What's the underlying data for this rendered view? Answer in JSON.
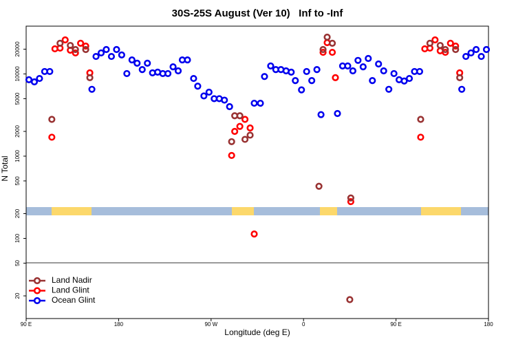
{
  "chart_data": {
    "type": "scatter",
    "title": "30S-25S August (Ver 10)   Inf to -Inf",
    "xlabel": "Longitude (deg E)",
    "ylabel": "N Total",
    "log_y": true,
    "legend": "bottom-left",
    "xlim": [
      90,
      540
    ],
    "ylim": [
      10.6,
      38100
    ],
    "xticks": [
      {
        "value": 90,
        "label": "90 E"
      },
      180,
      {
        "value": 270,
        "label": "90 W"
      },
      {
        "value": 360,
        "label": "0"
      },
      {
        "value": 450,
        "label": "90 E"
      },
      {
        "value": 540,
        "label": "180"
      }
    ],
    "yticks": [
      20,
      50,
      100,
      200,
      500,
      1000,
      2000,
      5000,
      10000,
      20000
    ],
    "series": [
      {
        "name": "Land Nadir",
        "color": "#993333",
        "x": [
          115,
          123,
          133,
          138,
          148,
          152,
          290,
          293,
          298,
          303,
          308,
          375,
          379,
          383,
          388,
          406,
          405,
          474,
          483,
          493,
          498,
          508,
          512
        ],
        "values": [
          2800,
          23600,
          22200,
          19800,
          19800,
          9000,
          1500,
          3100,
          3100,
          1600,
          1800,
          430,
          19800,
          28000,
          23600,
          310,
          18,
          2800,
          23600,
          22200,
          19800,
          19800,
          9000
        ]
      },
      {
        "name": "Land Glint",
        "color": "#ff0000",
        "x": [
          115,
          118,
          123,
          128,
          133,
          138,
          143,
          148,
          152,
          290,
          293,
          298,
          303,
          308,
          312,
          379,
          383,
          388,
          391,
          406,
          474,
          478,
          483,
          488,
          493,
          498,
          503,
          508,
          512
        ],
        "values": [
          1700,
          20200,
          20600,
          25900,
          19400,
          18000,
          23600,
          21800,
          10300,
          1020,
          2000,
          2300,
          2800,
          2200,
          113,
          18300,
          24000,
          18300,
          9000,
          280,
          1700,
          20200,
          20600,
          25900,
          19100,
          18300,
          23600,
          21800,
          10300
        ]
      },
      {
        "name": "Ocean Glint",
        "color": "#0000ee",
        "x": [
          92.7,
          98,
          103,
          108,
          113,
          154,
          158,
          163,
          168,
          173,
          178,
          183,
          188,
          193,
          198,
          203,
          208,
          213,
          218,
          223,
          228,
          233,
          238,
          242,
          247,
          253,
          257,
          263,
          268,
          273,
          278,
          283,
          288,
          312,
          318,
          322,
          328,
          333,
          338,
          343,
          348,
          352,
          358,
          363,
          368,
          373,
          377,
          393,
          398,
          403,
          408,
          413,
          418,
          423,
          427,
          433,
          438,
          443,
          448,
          453,
          458,
          463,
          468,
          473,
          514,
          518,
          523,
          528,
          533,
          538
        ],
        "values": [
          8500,
          8000,
          8800,
          10700,
          10700,
          6500,
          16300,
          18000,
          19800,
          16300,
          19800,
          17000,
          10100,
          14800,
          13500,
          11300,
          13500,
          10300,
          10500,
          10100,
          10100,
          12200,
          10900,
          14800,
          14800,
          8800,
          7100,
          5400,
          6000,
          5000,
          5000,
          4800,
          4000,
          4400,
          4400,
          9300,
          12500,
          11300,
          11300,
          10900,
          10500,
          8300,
          6400,
          10700,
          8300,
          11300,
          3200,
          3300,
          12500,
          12500,
          10900,
          14600,
          12200,
          15400,
          8300,
          13200,
          10900,
          6500,
          10100,
          8500,
          8200,
          8800,
          10700,
          10700,
          6500,
          16300,
          18000,
          19800,
          16300,
          19800
        ]
      }
    ]
  }
}
